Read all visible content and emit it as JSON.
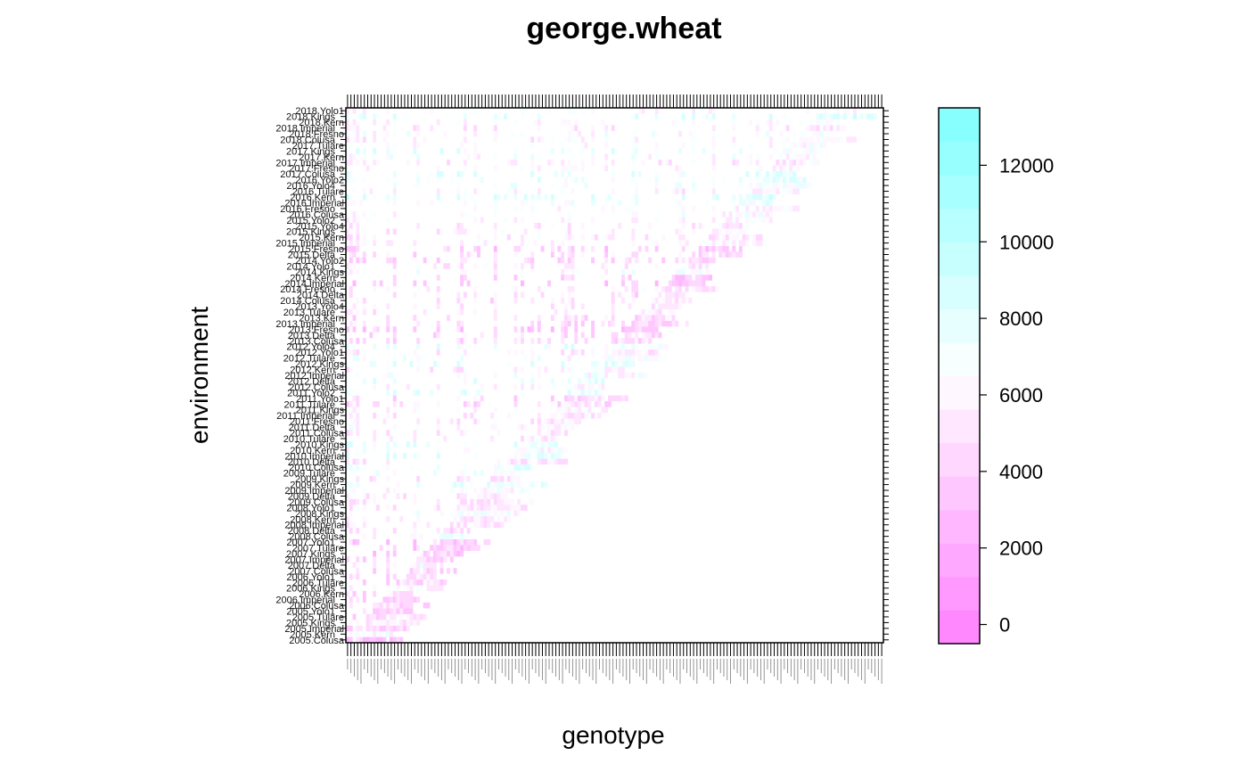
{
  "chart_data": {
    "type": "heatmap",
    "title": "george.wheat",
    "xlabel": "genotype",
    "ylabel": "environment",
    "x_count": 160,
    "y_categories": [
      "2005.Colusa",
      "2005.Kern",
      "2005.Imperial",
      "2005.Kings",
      "2005.Tulare",
      "2005.Yolo1",
      "2006.Colusa",
      "2006.Imperial",
      "2006.Kern",
      "2006.Kings",
      "2006.Tulare",
      "2006.Yolo1",
      "2007.Colusa",
      "2007.Delta",
      "2007.Imperial",
      "2007.Kings",
      "2007.Tulare",
      "2007.Yolo1",
      "2008.Colusa",
      "2008.Delta",
      "2008.Imperial",
      "2008.Kern",
      "2008.Kings",
      "2008.Yolo1",
      "2009.Colusa",
      "2009.Delta",
      "2009.Imperial",
      "2009.Kern",
      "2009.Kings",
      "2009.Tulare",
      "2010.Colusa",
      "2010.Delta",
      "2010.Imperial",
      "2010.Kern",
      "2010.Kings",
      "2010.Tulare",
      "2011.Colusa",
      "2011.Delta",
      "2011.Fresno",
      "2011.Imperial",
      "2011.Kings",
      "2011.Tulare",
      "2011.Yolo1",
      "2011.Yolo2",
      "2012.Colusa",
      "2012.Delta",
      "2012.Imperial",
      "2012.Kern",
      "2012.Kings",
      "2012.Tulare",
      "2012.Yolo1",
      "2012.Yolo4",
      "2013.Colusa",
      "2013.Delta",
      "2013.Fresno",
      "2013.Imperial",
      "2013.Kern",
      "2013.Tulare",
      "2013.Yolo4",
      "2014.Colusa",
      "2014.Delta",
      "2014.Fresno",
      "2014.Imperial",
      "2014.Kern",
      "2014.Kings",
      "2014.Yolo1",
      "2014.Yolo2",
      "2015.Delta",
      "2015.Fresno",
      "2015.Imperial",
      "2015.Kern",
      "2015.Kings",
      "2015.Yolo4",
      "2015.Yolo2",
      "2016.Colusa",
      "2016.Fresno",
      "2016.Imperial",
      "2016.Kern",
      "2016.Tulare",
      "2016.Yolo4",
      "2016.Yolo2",
      "2017.Colusa",
      "2017.Fresno",
      "2017.Imperial",
      "2017.Kern",
      "2017.Kings",
      "2017.Tulare",
      "2018.Colusa",
      "2018.Fresno",
      "2018.Imperial",
      "2018.Kern",
      "2018.Kings",
      "2018.Yolo1"
    ],
    "colorbar": {
      "range": [
        -500,
        13500
      ],
      "ticks": [
        0,
        2000,
        4000,
        6000,
        8000,
        10000,
        12000
      ],
      "tick_labels": [
        "0",
        "2000",
        "4000",
        "6000",
        "8000",
        "10000",
        "12000"
      ],
      "low_color": "#FF80FF",
      "mid_color": "#FFFFFF",
      "high_color": "#80FFFF"
    },
    "value_range": [
      -500,
      13500
    ]
  }
}
